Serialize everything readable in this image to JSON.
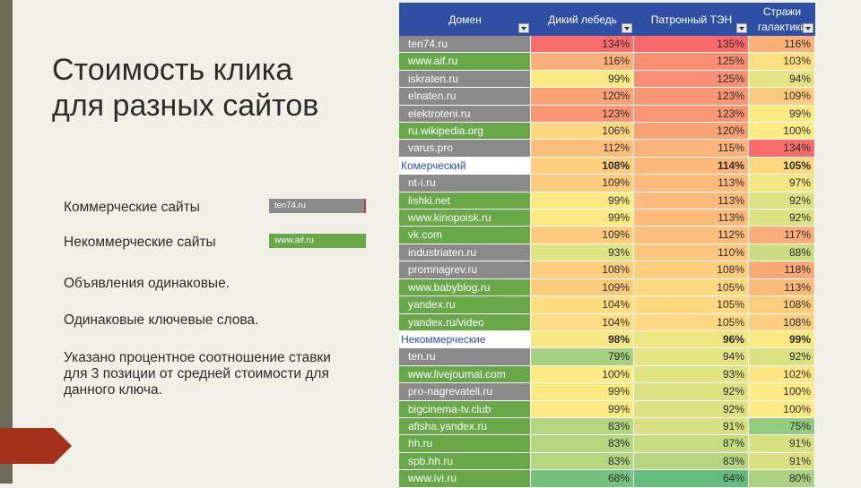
{
  "slide": {
    "title": "Стоимость клика для разных сайтов",
    "bullets": [
      "Коммерческие сайты",
      "Некоммерческие сайты",
      "Объявления одинаковые.",
      "Одинаковые ключевые слова.",
      "Указано процентное соотношение ставки для 3 позиции от средней стоимости для данного ключа."
    ],
    "legend_commercial": "ten74.ru",
    "legend_noncommercial": "www.aif.ru"
  },
  "colors": {
    "commercial": "#8a8a8a",
    "noncommercial": "#68a848",
    "header": "#2e4fa4",
    "accent": "#a5311a"
  },
  "table": {
    "headers": [
      "Домен",
      "Дикий лебедь",
      "Патронный ТЭН",
      "Стражи галактики"
    ],
    "rows": [
      {
        "type": "comm",
        "name": "ten74.ru",
        "v": [
          134,
          135,
          116
        ]
      },
      {
        "type": "noncomm",
        "name": "www.aif.ru",
        "v": [
          116,
          125,
          103
        ]
      },
      {
        "type": "comm",
        "name": "iskraten.ru",
        "v": [
          99,
          125,
          94
        ]
      },
      {
        "type": "comm",
        "name": "elnaten.ru",
        "v": [
          120,
          123,
          109
        ]
      },
      {
        "type": "comm",
        "name": "elektroteni.ru",
        "v": [
          123,
          123,
          99
        ]
      },
      {
        "type": "noncomm",
        "name": "ru.wikipedia.org",
        "v": [
          106,
          120,
          100
        ]
      },
      {
        "type": "comm",
        "name": "varus.pro",
        "v": [
          112,
          115,
          134
        ]
      },
      {
        "type": "group",
        "name": "Комерческий",
        "v": [
          108,
          114,
          105
        ]
      },
      {
        "type": "comm",
        "name": "nt-i.ru",
        "v": [
          109,
          113,
          97
        ]
      },
      {
        "type": "noncomm",
        "name": "lishki.net",
        "v": [
          99,
          113,
          92
        ]
      },
      {
        "type": "noncomm",
        "name": "www.kinopoisk.ru",
        "v": [
          99,
          113,
          92
        ]
      },
      {
        "type": "noncomm",
        "name": "vk.com",
        "v": [
          109,
          112,
          117
        ]
      },
      {
        "type": "comm",
        "name": "industriaten.ru",
        "v": [
          93,
          110,
          88
        ]
      },
      {
        "type": "comm",
        "name": "promnagrev.ru",
        "v": [
          108,
          108,
          118
        ]
      },
      {
        "type": "noncomm",
        "name": "www.babyblog.ru",
        "v": [
          109,
          105,
          113
        ]
      },
      {
        "type": "noncomm",
        "name": "yandex.ru",
        "v": [
          104,
          105,
          108
        ]
      },
      {
        "type": "noncomm",
        "name": "yandex.ru/video",
        "v": [
          104,
          105,
          108
        ]
      },
      {
        "type": "group",
        "name": "Некоммерческие",
        "v": [
          98,
          96,
          99
        ]
      },
      {
        "type": "comm",
        "name": "ten.ru",
        "v": [
          79,
          94,
          92
        ]
      },
      {
        "type": "noncomm",
        "name": "www.livejournal.com",
        "v": [
          100,
          93,
          102
        ]
      },
      {
        "type": "comm",
        "name": "pro-nagrevateli.ru",
        "v": [
          99,
          92,
          100
        ]
      },
      {
        "type": "noncomm",
        "name": "bigcinema-tv.club",
        "v": [
          99,
          92,
          100
        ]
      },
      {
        "type": "noncomm",
        "name": "afisha.yandex.ru",
        "v": [
          83,
          91,
          75
        ]
      },
      {
        "type": "noncomm",
        "name": "hh.ru",
        "v": [
          83,
          87,
          91
        ]
      },
      {
        "type": "noncomm",
        "name": "spb.hh.ru",
        "v": [
          83,
          83,
          91
        ]
      },
      {
        "type": "noncomm",
        "name": "www.ivi.ru",
        "v": [
          68,
          64,
          80
        ]
      }
    ]
  }
}
